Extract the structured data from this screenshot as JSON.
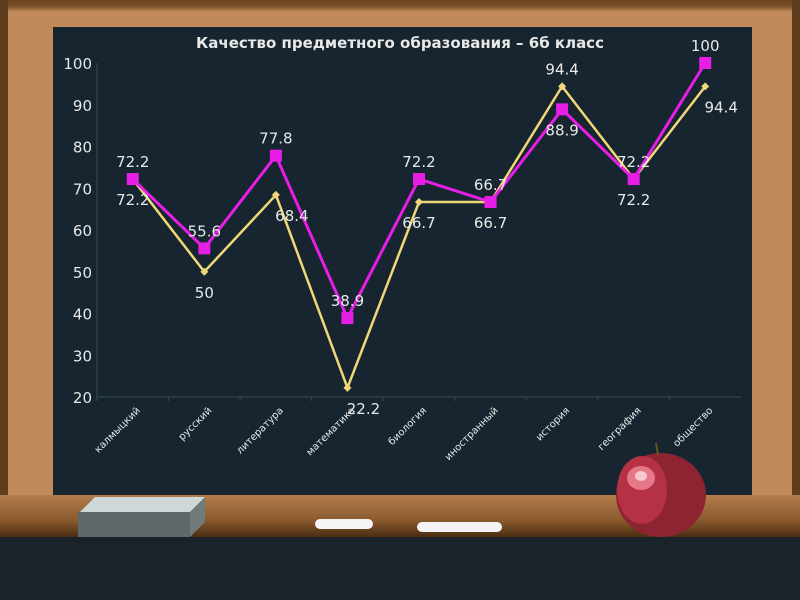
{
  "chart_data": {
    "type": "line",
    "title": "Качество предметного образования – 6б класс",
    "categories": [
      "калмыцкий",
      "русский",
      "литература",
      "математика",
      "биология",
      "иностранный",
      "история",
      "география",
      "общество"
    ],
    "ylim": [
      20,
      100
    ],
    "yticks": [
      20,
      30,
      40,
      50,
      60,
      70,
      80,
      90,
      100
    ],
    "grid": false,
    "series": [
      {
        "values": [
          72.2,
          55.6,
          77.8,
          38.9,
          72.2,
          66.7,
          88.9,
          72.2,
          100
        ],
        "color": "#e61ee6",
        "marker": "square"
      },
      {
        "values": [
          72.2,
          50,
          68.4,
          22.2,
          66.7,
          66.7,
          94.4,
          72.2,
          94.4
        ],
        "color": "#f0d878",
        "marker": "diamond"
      }
    ]
  },
  "colors": {
    "board": "#16252f",
    "frame": "#c08a5a"
  }
}
